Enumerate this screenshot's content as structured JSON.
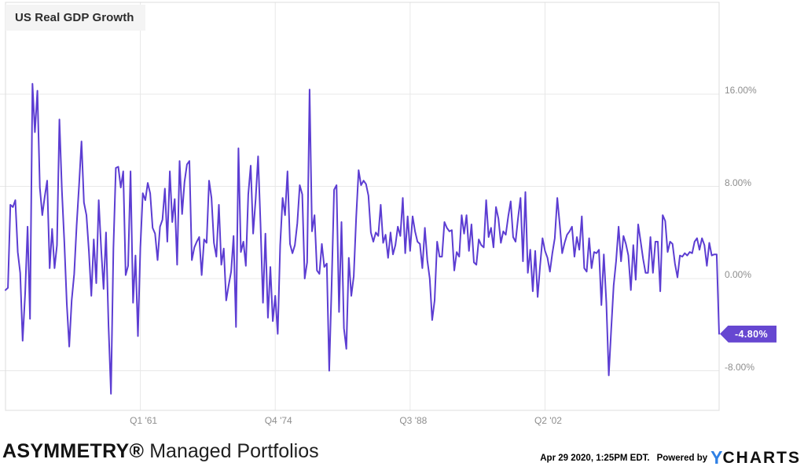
{
  "title_chip": {
    "label": "US Real GDP Growth"
  },
  "chart_data": {
    "type": "line",
    "title": "US Real GDP Growth",
    "unit": "percent, quarterly annualized rate",
    "frequency": "quarterly",
    "x_start_label": "1947 Q2",
    "x_end_label": "2020 Q1",
    "grid": true,
    "legend_position": "top-left",
    "line_color": "#5C3DD2",
    "badge_color": "#6647D1",
    "ylim": [
      -11.5,
      24
    ],
    "y_ticks": [
      "16.00%",
      "8.00%",
      "0.00%",
      "-8.00%"
    ],
    "y_tick_values": [
      16,
      8,
      0,
      -8
    ],
    "x_ticks": [
      {
        "label": "Q1 '61",
        "index": 55
      },
      {
        "label": "Q4 '74",
        "index": 110
      },
      {
        "label": "Q3 '88",
        "index": 165
      },
      {
        "label": "Q2 '02",
        "index": 220
      }
    ],
    "last_value_label": "-4.80%",
    "last_value": -4.8,
    "values": [
      -1.0,
      -0.8,
      6.4,
      6.2,
      6.8,
      2.3,
      0.5,
      -5.4,
      -1.3,
      4.5,
      -3.5,
      16.9,
      12.7,
      16.3,
      7.9,
      5.5,
      7.1,
      8.5,
      0.9,
      4.3,
      0.9,
      2.9,
      13.8,
      7.6,
      3.1,
      -2.2,
      -5.9,
      -1.9,
      0.4,
      4.6,
      8.1,
      11.9,
      6.6,
      5.5,
      2.4,
      -1.5,
      3.4,
      -0.4,
      6.8,
      2.6,
      -0.9,
      4.0,
      -4.1,
      -10.0,
      2.6,
      9.6,
      9.7,
      7.9,
      9.3,
      0.3,
      1.1,
      9.3,
      -2.1,
      2.0,
      -5.0,
      2.7,
      7.4,
      6.8,
      8.3,
      7.4,
      4.4,
      3.9,
      1.6,
      4.5,
      5.1,
      7.8,
      3.2,
      9.3,
      4.9,
      6.9,
      1.2,
      10.2,
      5.6,
      8.4,
      9.9,
      10.2,
      1.6,
      2.7,
      3.2,
      3.6,
      0.3,
      3.4,
      3.1,
      8.5,
      7.0,
      3.1,
      1.9,
      6.4,
      1.2,
      2.6,
      -1.9,
      -0.6,
      0.6,
      3.7,
      -4.2,
      11.3,
      2.3,
      3.2,
      1.1,
      7.3,
      9.8,
      3.9,
      6.9,
      10.6,
      4.7,
      -2.1,
      3.9,
      -3.4,
      1.0,
      -3.7,
      -1.5,
      -4.8,
      2.9,
      7.0,
      5.5,
      9.3,
      3.0,
      2.2,
      2.9,
      4.8,
      8.1,
      7.3,
      0.0,
      1.4,
      16.4,
      4.1,
      5.5,
      0.7,
      0.4,
      3.0,
      1.0,
      1.3,
      -8.0,
      -0.5,
      7.7,
      8.1,
      -2.9,
      4.9,
      -4.3,
      -6.1,
      1.8,
      -1.5,
      0.2,
      5.3,
      9.4,
      8.1,
      8.5,
      8.2,
      7.2,
      4.0,
      3.2,
      4.0,
      3.7,
      6.4,
      3.1,
      3.8,
      1.8,
      4.0,
      2.1,
      2.9,
      4.5,
      3.7,
      7.0,
      2.2,
      5.4,
      2.4,
      5.4,
      4.1,
      3.2,
      3.0,
      0.9,
      4.4,
      1.6,
      0.0,
      -3.6,
      -1.9,
      3.2,
      1.9,
      1.9,
      4.9,
      4.4,
      4.1,
      4.2,
      0.7,
      2.3,
      1.9,
      5.5,
      3.9,
      5.5,
      2.4,
      4.7,
      1.4,
      1.2,
      3.4,
      2.9,
      2.7,
      6.8,
      3.6,
      4.4,
      2.7,
      6.2,
      5.2,
      3.1,
      4.1,
      3.8,
      5.4,
      6.7,
      3.6,
      3.2,
      5.2,
      7.0,
      1.5,
      7.5,
      0.5,
      2.5,
      -1.1,
      2.4,
      -1.6,
      1.1,
      3.5,
      2.4,
      1.8,
      0.6,
      2.2,
      3.5,
      7.0,
      4.7,
      2.2,
      3.1,
      3.8,
      4.1,
      4.5,
      1.9,
      3.6,
      2.5,
      5.4,
      0.9,
      0.6,
      3.5,
      0.9,
      2.3,
      2.2,
      2.5,
      -2.3,
      2.1,
      -2.1,
      -8.4,
      -4.4,
      -0.6,
      1.5,
      4.5,
      1.5,
      3.7,
      3.0,
      2.0,
      -1.0,
      2.9,
      -0.1,
      4.7,
      3.2,
      1.7,
      0.5,
      0.5,
      3.6,
      0.5,
      3.2,
      3.2,
      -1.1,
      5.5,
      5.0,
      2.3,
      3.2,
      3.0,
      1.3,
      0.1,
      2.0,
      1.9,
      2.2,
      2.0,
      2.3,
      2.2,
      3.2,
      3.5,
      2.5,
      3.5,
      2.9,
      1.1,
      3.1,
      2.0,
      2.1,
      2.1,
      -4.8
    ]
  },
  "footer": {
    "brand_bold": "ASYMMETRY®",
    "brand_regular": "Managed Portfolios",
    "timestamp": "Apr 29 2020, 1:25PM EDT.",
    "powered_by": "Powered by",
    "logo_y": "Y",
    "logo_charts": "CHARTS",
    "logo_blue": "#2F80E4"
  }
}
